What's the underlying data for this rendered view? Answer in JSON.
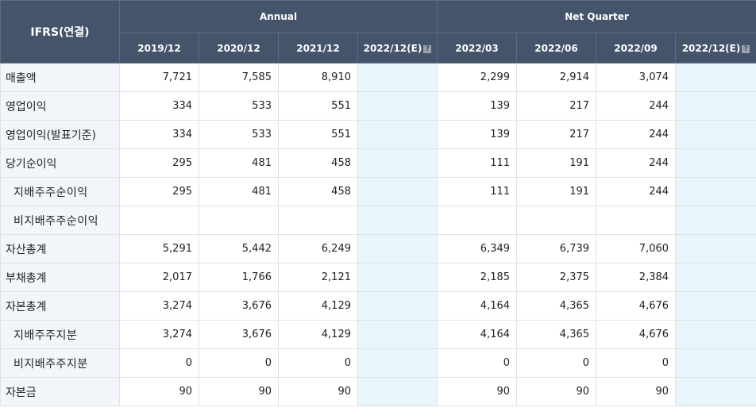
{
  "header": {
    "corner_label": "IFRS(연결)",
    "annual_label": "Annual",
    "quarter_label": "Net Quarter",
    "annual_periods": [
      "2019/12",
      "2020/12",
      "2021/12",
      "2022/12(E)"
    ],
    "quarter_periods": [
      "2022/03",
      "2022/06",
      "2022/09",
      "2022/12(E)"
    ],
    "estimate_icon": "question-icon"
  },
  "rows": [
    {
      "label": "매출액",
      "sub": false,
      "annual": [
        "7,721",
        "7,585",
        "8,910",
        ""
      ],
      "quarter": [
        "2,299",
        "2,914",
        "3,074",
        ""
      ]
    },
    {
      "label": "영업이익",
      "sub": false,
      "annual": [
        "334",
        "533",
        "551",
        ""
      ],
      "quarter": [
        "139",
        "217",
        "244",
        ""
      ]
    },
    {
      "label": "영업이익(발표기준)",
      "sub": false,
      "annual": [
        "334",
        "533",
        "551",
        ""
      ],
      "quarter": [
        "139",
        "217",
        "244",
        ""
      ]
    },
    {
      "label": "당기순이익",
      "sub": false,
      "annual": [
        "295",
        "481",
        "458",
        ""
      ],
      "quarter": [
        "111",
        "191",
        "244",
        ""
      ]
    },
    {
      "label": "지배주주순이익",
      "sub": true,
      "annual": [
        "295",
        "481",
        "458",
        ""
      ],
      "quarter": [
        "111",
        "191",
        "244",
        ""
      ]
    },
    {
      "label": "비지배주주순이익",
      "sub": true,
      "annual": [
        "",
        "",
        "",
        ""
      ],
      "quarter": [
        "",
        "",
        "",
        ""
      ]
    },
    {
      "label": "자산총계",
      "sub": false,
      "annual": [
        "5,291",
        "5,442",
        "6,249",
        ""
      ],
      "quarter": [
        "6,349",
        "6,739",
        "7,060",
        ""
      ]
    },
    {
      "label": "부채총계",
      "sub": false,
      "annual": [
        "2,017",
        "1,766",
        "2,121",
        ""
      ],
      "quarter": [
        "2,185",
        "2,375",
        "2,384",
        ""
      ]
    },
    {
      "label": "자본총계",
      "sub": false,
      "annual": [
        "3,274",
        "3,676",
        "4,129",
        ""
      ],
      "quarter": [
        "4,164",
        "4,365",
        "4,676",
        ""
      ]
    },
    {
      "label": "지배주주지분",
      "sub": true,
      "annual": [
        "3,274",
        "3,676",
        "4,129",
        ""
      ],
      "quarter": [
        "4,164",
        "4,365",
        "4,676",
        ""
      ]
    },
    {
      "label": "비지배주주지분",
      "sub": true,
      "annual": [
        "0",
        "0",
        "0",
        ""
      ],
      "quarter": [
        "0",
        "0",
        "0",
        ""
      ]
    },
    {
      "label": "자본금",
      "sub": false,
      "annual": [
        "90",
        "90",
        "90",
        ""
      ],
      "quarter": [
        "90",
        "90",
        "90",
        ""
      ]
    }
  ],
  "colors": {
    "header_bg": "#44546a",
    "label_bg": "#f2f5f9",
    "estimate_bg": "#e8f6fc"
  }
}
